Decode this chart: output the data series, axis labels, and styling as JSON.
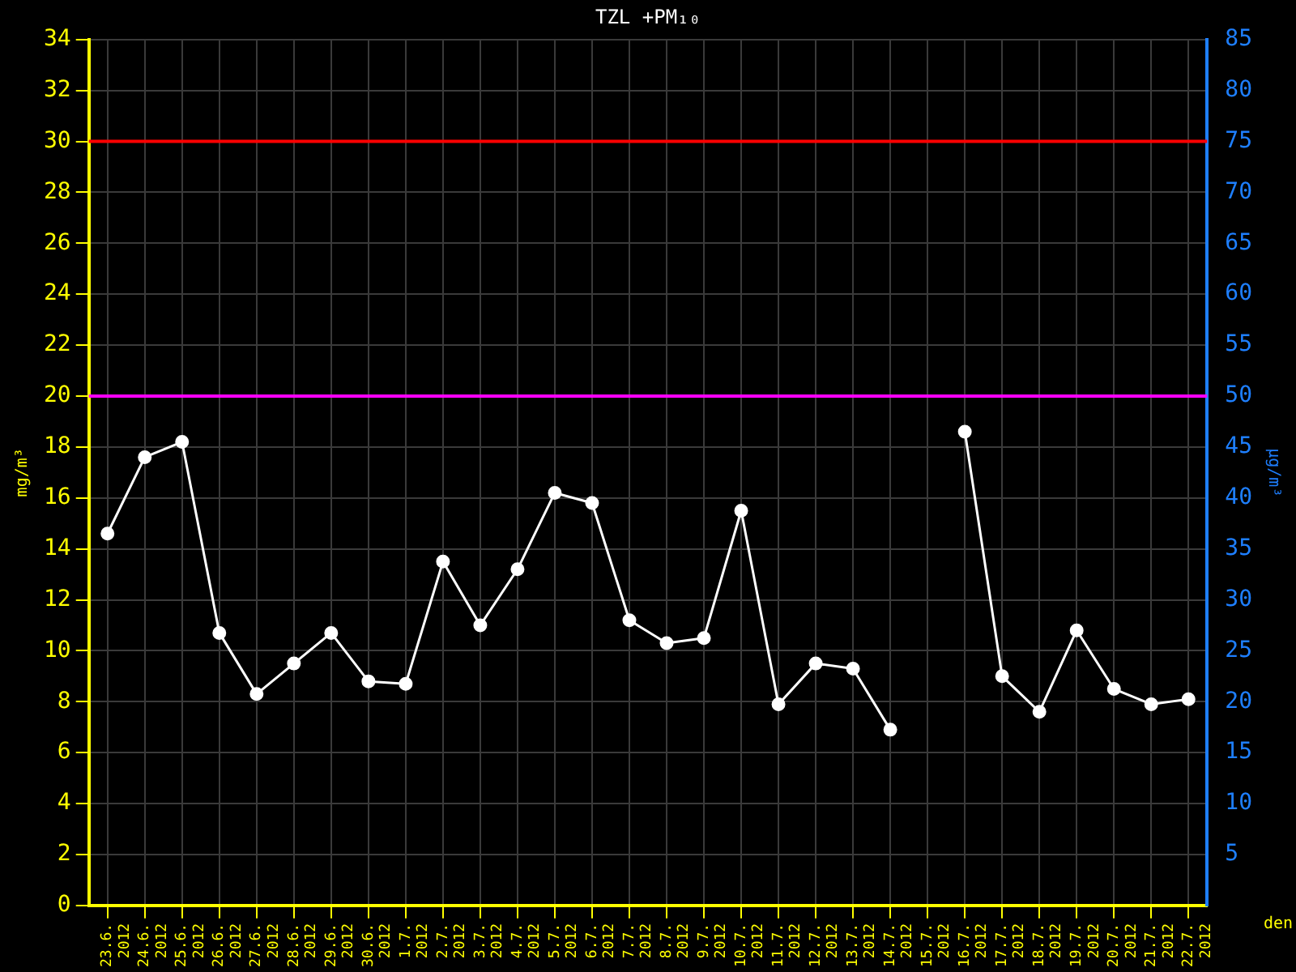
{
  "chart_data": {
    "type": "line",
    "title": "TZL +PM₁₀",
    "xlabel": "den",
    "ylabel": "mg/m³",
    "y2label": "µg/m³",
    "categories": [
      "23.6. 2012",
      "24.6. 2012",
      "25.6. 2012",
      "26.6. 2012",
      "27.6. 2012",
      "28.6. 2012",
      "29.6. 2012",
      "30.6. 2012",
      "1.7. 2012",
      "2.7. 2012",
      "3.7. 2012",
      "4.7. 2012",
      "5.7. 2012",
      "6.7. 2012",
      "7.7. 2012",
      "8.7. 2012",
      "9.7. 2012",
      "10.7. 2012",
      "11.7. 2012",
      "12.7. 2012",
      "13.7. 2012",
      "14.7. 2012",
      "15.7. 2012",
      "16.7. 2012",
      "17.7. 2012",
      "18.7. 2012",
      "19.7. 2012",
      "20.7. 2012",
      "21.7. 2012",
      "22.7. 2012"
    ],
    "series": [
      {
        "color": "#ffffff",
        "values": [
          14.6,
          17.6,
          18.2,
          10.7,
          8.3,
          9.5,
          10.7,
          8.8,
          8.7,
          13.5,
          11.0,
          13.2,
          16.2,
          15.8,
          11.2,
          10.3,
          10.5,
          15.5,
          7.9,
          9.5,
          9.3,
          6.9,
          null,
          18.6,
          9.0,
          7.6,
          10.8,
          8.5,
          7.9,
          8.1
        ]
      }
    ],
    "ylim": [
      0,
      34
    ],
    "yticks": [
      0,
      2,
      4,
      6,
      8,
      10,
      12,
      14,
      16,
      18,
      20,
      22,
      24,
      26,
      28,
      30,
      32,
      34
    ],
    "y2lim": [
      0,
      85
    ],
    "y2ticks": [
      5,
      10,
      15,
      20,
      25,
      30,
      35,
      40,
      45,
      50,
      55,
      60,
      65,
      70,
      75,
      80,
      85
    ],
    "ref_lines": [
      {
        "axis": "y",
        "value": 30,
        "color": "#ff0000"
      },
      {
        "axis": "y",
        "value": 20,
        "color": "#ff00ff"
      }
    ],
    "grid": true,
    "legend": false,
    "marker": "circle",
    "line_style": "solid"
  }
}
